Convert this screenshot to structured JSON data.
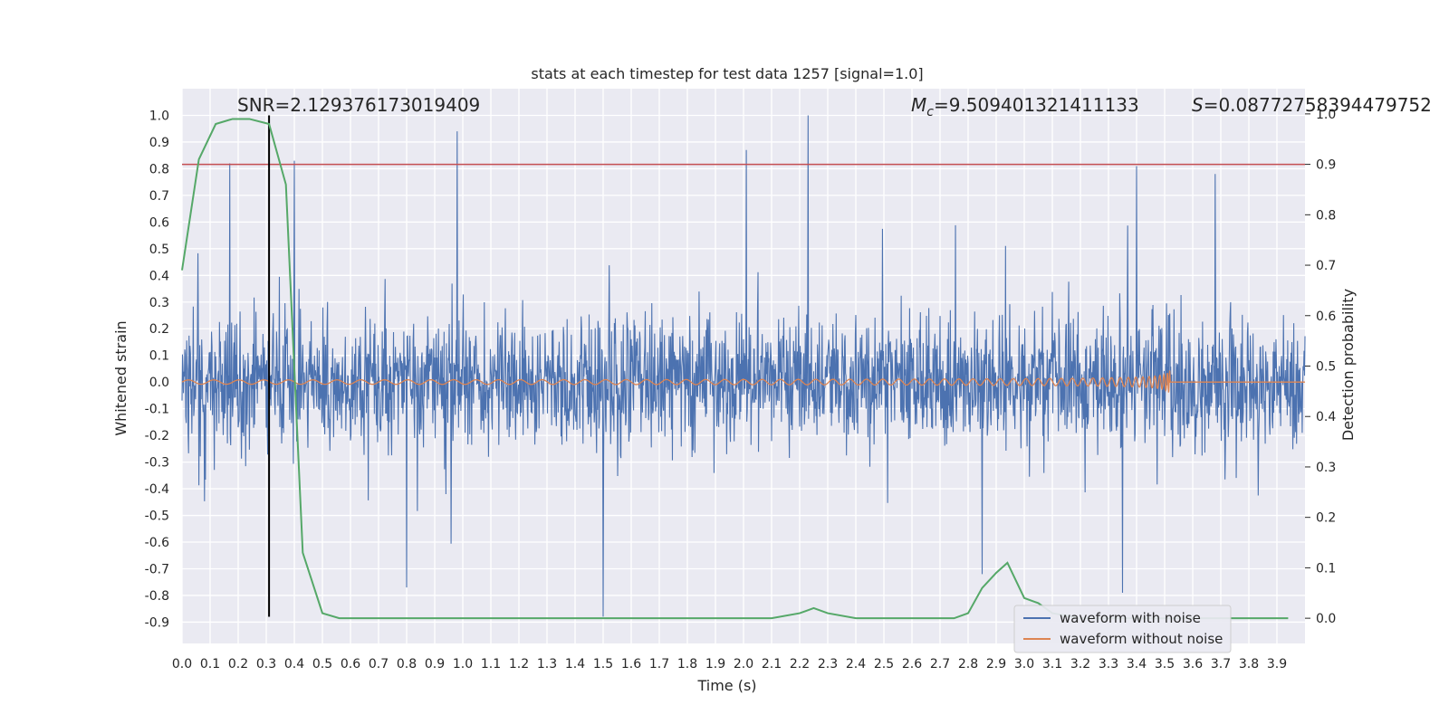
{
  "chart_data": {
    "type": "line",
    "title": "stats at each timestep for test data 1257 [signal=1.0]",
    "xlabel": "Time (s)",
    "ylabel": "Whitened strain",
    "y2label": "Detection probability",
    "xlim": [
      0.0,
      4.0
    ],
    "ylim": [
      -0.98,
      1.1
    ],
    "y2lim": [
      -0.05,
      1.05
    ],
    "xticks": [
      "0.0",
      "0.1",
      "0.2",
      "0.3",
      "0.4",
      "0.5",
      "0.6",
      "0.7",
      "0.8",
      "0.9",
      "1.0",
      "1.1",
      "1.2",
      "1.3",
      "1.4",
      "1.5",
      "1.6",
      "1.7",
      "1.8",
      "1.9",
      "2.0",
      "2.1",
      "2.2",
      "2.3",
      "2.4",
      "2.5",
      "2.6",
      "2.7",
      "2.8",
      "2.9",
      "3.0",
      "3.1",
      "3.2",
      "3.3",
      "3.4",
      "3.5",
      "3.6",
      "3.7",
      "3.8",
      "3.9"
    ],
    "yticks": [
      "-0.9",
      "-0.8",
      "-0.7",
      "-0.6",
      "-0.5",
      "-0.4",
      "-0.3",
      "-0.2",
      "-0.1",
      "0.0",
      "0.1",
      "0.2",
      "0.3",
      "0.4",
      "0.5",
      "0.6",
      "0.7",
      "0.8",
      "0.9",
      "1.0"
    ],
    "y2ticks": [
      "0.0",
      "0.1",
      "0.2",
      "0.3",
      "0.4",
      "0.5",
      "0.6",
      "0.7",
      "0.8",
      "0.9",
      "1.0"
    ],
    "grid": true,
    "legend_position": "bottom-right",
    "annotations": {
      "snr": "SNR=2.129376173019409",
      "mc_symbol": "M",
      "mc_sub": "c",
      "mc_value": "=9.509401321411133",
      "s_symbol": "S",
      "s_value": "=0.08772758394479752"
    },
    "threshold_line": {
      "y2": 0.9,
      "color": "#c44e52"
    },
    "marker_line": {
      "x": 0.31,
      "color": "#000000"
    },
    "series": [
      {
        "name": "waveform with noise",
        "color": "#4c72b0",
        "axis": "left",
        "description": "dense noisy strain between about -0.88 and 1.0",
        "spikes": [
          [
            0.17,
            0.82
          ],
          [
            0.4,
            0.83
          ],
          [
            0.98,
            0.94
          ],
          [
            2.01,
            0.87
          ],
          [
            2.23,
            1.0
          ],
          [
            3.4,
            0.81
          ],
          [
            3.68,
            0.78
          ],
          [
            1.5,
            -0.88
          ],
          [
            0.8,
            -0.77
          ],
          [
            3.35,
            -0.79
          ],
          [
            2.85,
            -0.72
          ]
        ]
      },
      {
        "name": "waveform without noise",
        "color": "#dd8452",
        "axis": "left",
        "description": "chirp growing in amplitude until merger at ~3.52 s",
        "merger_time": 3.52
      },
      {
        "color": "#55a868",
        "axis": "right",
        "x": [
          0.0,
          0.06,
          0.12,
          0.18,
          0.24,
          0.31,
          0.37,
          0.43,
          0.5,
          0.56,
          0.62,
          0.7,
          0.8,
          1.0,
          1.5,
          2.0,
          2.1,
          2.2,
          2.25,
          2.3,
          2.4,
          2.5,
          2.6,
          2.7,
          2.75,
          2.8,
          2.85,
          2.9,
          2.94,
          3.0,
          3.05,
          3.1,
          3.2,
          3.5,
          3.94
        ],
        "y": [
          0.69,
          0.91,
          0.98,
          0.99,
          0.99,
          0.98,
          0.86,
          0.13,
          0.01,
          0.0,
          0.0,
          0.0,
          0.0,
          0.0,
          0.0,
          0.0,
          0.0,
          0.01,
          0.02,
          0.01,
          0.0,
          0.0,
          0.0,
          0.0,
          0.0,
          0.01,
          0.06,
          0.09,
          0.11,
          0.04,
          0.03,
          0.01,
          0.0,
          0.0,
          0.0
        ]
      }
    ]
  }
}
